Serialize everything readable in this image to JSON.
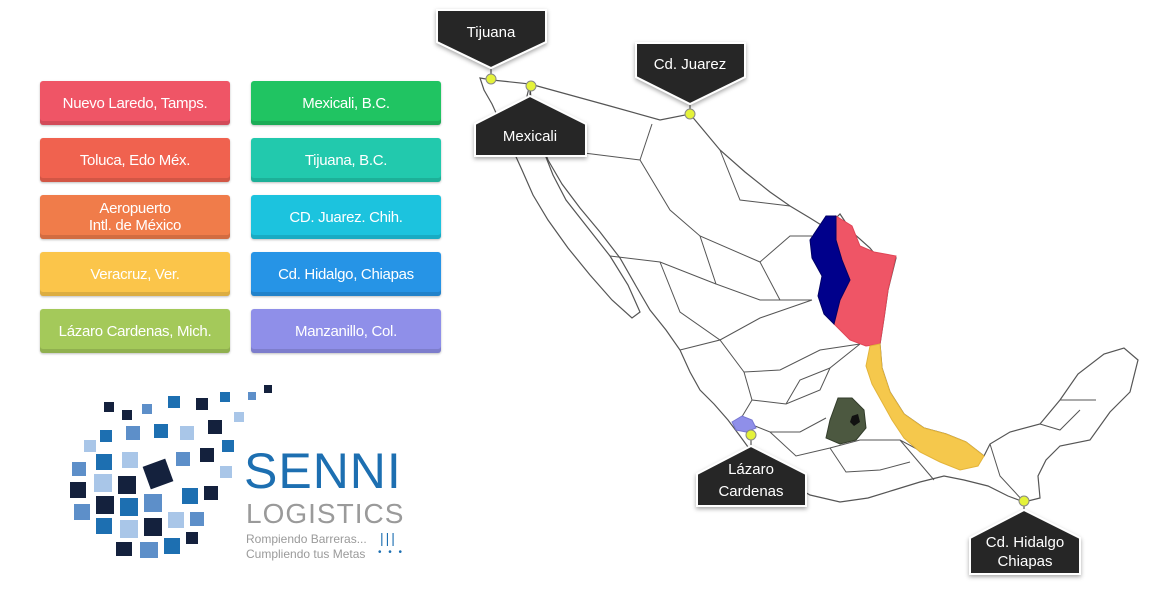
{
  "buttons": [
    {
      "label": "Nuevo Laredo, Tamps.",
      "color": "#ef5566"
    },
    {
      "label": "Toluca, Edo Méx.",
      "color": "#f0624f"
    },
    {
      "label": "Aeropuerto\nIntl. de México",
      "color": "#f07c4a"
    },
    {
      "label": "Veracruz, Ver.",
      "color": "#fbc54a"
    },
    {
      "label": "Lázaro Cardenas, Mich.",
      "color": "#a4c95a"
    },
    {
      "label": "Mexicali, B.C.",
      "color": "#20c462"
    },
    {
      "label": "Tijuana, B.C.",
      "color": "#22c9ad"
    },
    {
      "label": "CD. Juarez. Chih.",
      "color": "#1cc3de"
    },
    {
      "label": "Cd. Hidalgo, Chiapas",
      "color": "#2694e6"
    },
    {
      "label": "Manzanillo, Col.",
      "color": "#8f8fe9"
    }
  ],
  "map": {
    "callouts": {
      "tijuana": "Tijuana",
      "mexicali": "Mexicali",
      "cd_juarez": "Cd. Juarez",
      "lazaro_1": "Lázaro",
      "lazaro_2": "Cardenas",
      "hidalgo_1": "Cd. Hidalgo",
      "hidalgo_2": "Chiapas"
    },
    "region_colors": {
      "nuevo_leon": "#00008b",
      "tamaulipas": "#ef5566",
      "veracruz": "#f5c84c",
      "estado_mexico": "#4c5840",
      "colima": "#8f8fe9"
    },
    "marker_color": "#e4f23a"
  },
  "logo": {
    "title": "SENNI",
    "subtitle": "LOGISTICS",
    "tagline_1": "Rompiendo Barreras...",
    "tagline_2": "Cumpliendo tus Metas",
    "brand_color": "#1d6fb1"
  }
}
